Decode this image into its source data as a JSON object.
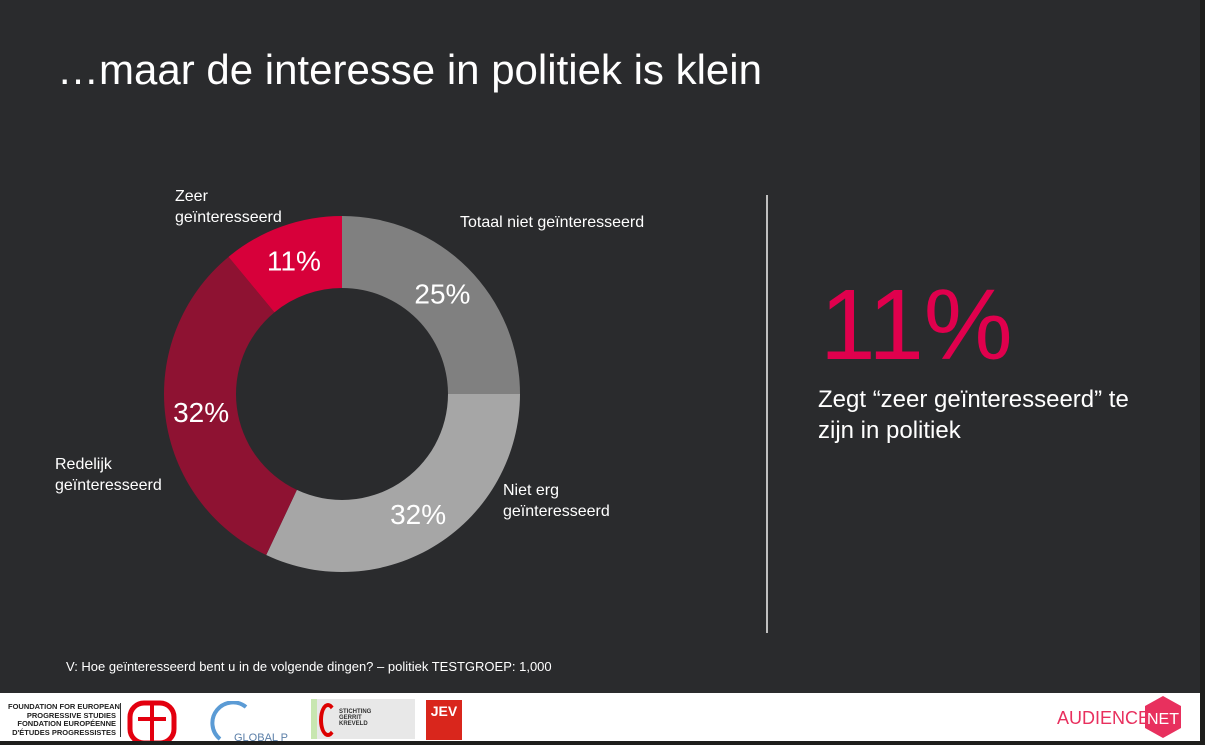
{
  "title": "…maar de interesse in politiek is klein",
  "chart_data": {
    "type": "pie",
    "donut": true,
    "start": "top",
    "direction": "clockwise",
    "slices": [
      {
        "label": "Totaal niet geïnteresseerd",
        "value": 25,
        "display": "25%",
        "color": "#808080"
      },
      {
        "label": "Niet erg geïnteresseerd",
        "value": 32,
        "display": "32%",
        "color": "#a6a6a6"
      },
      {
        "label": "Redelijk geïnteresseerd",
        "value": 32,
        "display": "32%",
        "color": "#8e1232"
      },
      {
        "label": "Zeer geïnteresseerd",
        "value": 11,
        "display": "11%",
        "color": "#d7003a"
      }
    ]
  },
  "labels": {
    "zeer_1": "Zeer",
    "zeer_2": "geïnteresseerd",
    "totaal": "Totaal niet geïnteresseerd",
    "niet_1": "Niet erg",
    "niet_2": "geïnteresseerd",
    "redelijk_1": "Redelijk",
    "redelijk_2": "geïnteresseerd"
  },
  "highlight": {
    "value": "11%",
    "text": "Zegt “zeer geïnteresseerd” te zijn in politiek",
    "color": "#e0004d"
  },
  "question": "V: Hoe geïnteresseerd bent u in de volgende dingen? – politiek TESTGROEP: 1,000",
  "footer": {
    "feps_lines": [
      "FOUNDATION FOR EUROPEAN",
      "PROGRESSIVE STUDIES",
      "FONDATION EUROPÉENNE",
      "D'ÉTUDES PROGRESSISTES"
    ],
    "global_progress": "GLOBAL PROGRESS",
    "stichting": "STICHTING GERRIT KREVELD",
    "jev": "JEV",
    "audience": "AUDIENCE",
    "net": "NET"
  }
}
